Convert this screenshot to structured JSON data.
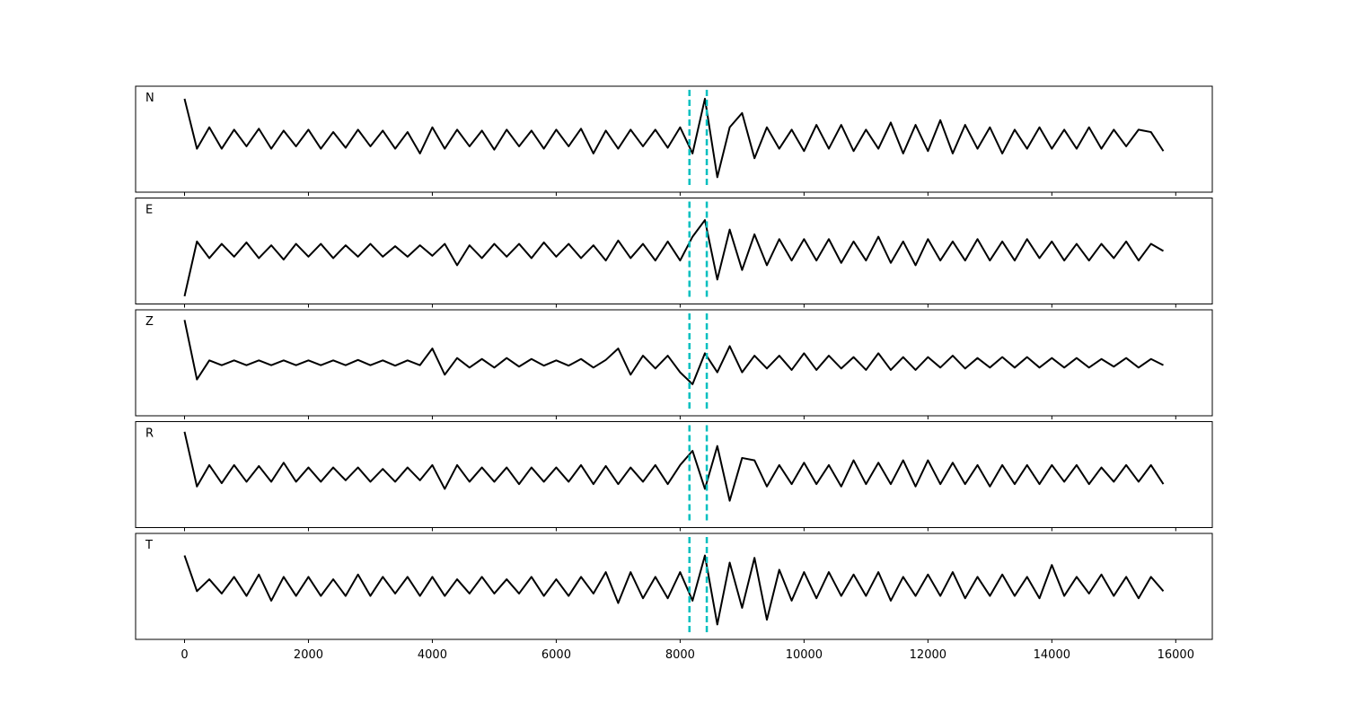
{
  "chart_data": {
    "type": "line",
    "layout": "stacked",
    "x": [
      0,
      200,
      400,
      600,
      800,
      1000,
      1200,
      1400,
      1600,
      1800,
      2000,
      2200,
      2400,
      2600,
      2800,
      3000,
      3200,
      3400,
      3600,
      3800,
      4000,
      4200,
      4400,
      4600,
      4800,
      5000,
      5200,
      5400,
      5600,
      5800,
      6000,
      6200,
      6400,
      6600,
      6800,
      7000,
      7200,
      7400,
      7600,
      7800,
      8000,
      8200,
      8400,
      8600,
      8800,
      9000,
      9200,
      9400,
      9600,
      9800,
      10000,
      10200,
      10400,
      10600,
      10800,
      11000,
      11200,
      11400,
      11600,
      11800,
      12000,
      12200,
      12400,
      12600,
      12800,
      13000,
      13200,
      13400,
      13600,
      13800,
      14000,
      14200,
      14400,
      14600,
      14800,
      15000,
      15200,
      15400,
      15600,
      15800
    ],
    "color": "#000000",
    "series": [
      {
        "name": "N",
        "values": [
          0.85,
          -0.2,
          0.25,
          -0.2,
          0.2,
          -0.15,
          0.22,
          -0.2,
          0.18,
          -0.15,
          0.2,
          -0.2,
          0.15,
          -0.18,
          0.2,
          -0.15,
          0.18,
          -0.2,
          0.15,
          -0.3,
          0.25,
          -0.2,
          0.2,
          -0.15,
          0.18,
          -0.22,
          0.2,
          -0.15,
          0.18,
          -0.2,
          0.2,
          -0.15,
          0.22,
          -0.3,
          0.18,
          -0.2,
          0.2,
          -0.15,
          0.2,
          -0.18,
          0.25,
          -0.3,
          0.85,
          -0.8,
          0.25,
          0.55,
          -0.4,
          0.25,
          -0.2,
          0.2,
          -0.25,
          0.3,
          -0.2,
          0.3,
          -0.25,
          0.2,
          -0.2,
          0.35,
          -0.3,
          0.3,
          -0.25,
          0.4,
          -0.3,
          0.3,
          -0.2,
          0.25,
          -0.3,
          0.2,
          -0.2,
          0.25,
          -0.2,
          0.2,
          -0.2,
          0.25,
          -0.2,
          0.2,
          -0.15,
          0.2,
          0.15,
          -0.25
        ]
      },
      {
        "name": "E",
        "values": [
          -0.95,
          0.2,
          -0.15,
          0.15,
          -0.12,
          0.18,
          -0.15,
          0.12,
          -0.18,
          0.15,
          -0.12,
          0.15,
          -0.15,
          0.12,
          -0.12,
          0.15,
          -0.12,
          0.1,
          -0.12,
          0.12,
          -0.1,
          0.15,
          -0.3,
          0.12,
          -0.15,
          0.15,
          -0.12,
          0.15,
          -0.15,
          0.18,
          -0.12,
          0.15,
          -0.15,
          0.12,
          -0.2,
          0.22,
          -0.15,
          0.15,
          -0.2,
          0.2,
          -0.2,
          0.3,
          0.65,
          -0.6,
          0.45,
          -0.4,
          0.35,
          -0.3,
          0.25,
          -0.2,
          0.25,
          -0.2,
          0.25,
          -0.25,
          0.2,
          -0.2,
          0.3,
          -0.25,
          0.2,
          -0.3,
          0.25,
          -0.2,
          0.2,
          -0.2,
          0.25,
          -0.2,
          0.2,
          -0.2,
          0.25,
          -0.15,
          0.2,
          -0.2,
          0.15,
          -0.2,
          0.15,
          -0.15,
          0.2,
          -0.2,
          0.15,
          0.0
        ]
      },
      {
        "name": "Z",
        "values": [
          0.9,
          -0.35,
          0.05,
          -0.05,
          0.05,
          -0.05,
          0.05,
          -0.05,
          0.05,
          -0.05,
          0.05,
          -0.05,
          0.05,
          -0.05,
          0.06,
          -0.05,
          0.05,
          -0.06,
          0.05,
          -0.05,
          0.3,
          -0.25,
          0.1,
          -0.1,
          0.08,
          -0.1,
          0.1,
          -0.08,
          0.08,
          -0.06,
          0.05,
          -0.06,
          0.08,
          -0.1,
          0.06,
          0.3,
          -0.25,
          0.15,
          -0.12,
          0.15,
          -0.2,
          -0.45,
          0.2,
          -0.2,
          0.35,
          -0.2,
          0.15,
          -0.12,
          0.15,
          -0.15,
          0.2,
          -0.15,
          0.15,
          -0.12,
          0.12,
          -0.15,
          0.2,
          -0.15,
          0.12,
          -0.15,
          0.12,
          -0.1,
          0.15,
          -0.12,
          0.1,
          -0.1,
          0.12,
          -0.1,
          0.12,
          -0.1,
          0.1,
          -0.1,
          0.1,
          -0.1,
          0.08,
          -0.08,
          0.1,
          -0.1,
          0.08,
          -0.05
        ]
      },
      {
        "name": "R",
        "values": [
          0.9,
          -0.25,
          0.2,
          -0.18,
          0.2,
          -0.15,
          0.18,
          -0.15,
          0.25,
          -0.15,
          0.15,
          -0.15,
          0.15,
          -0.12,
          0.15,
          -0.15,
          0.12,
          -0.15,
          0.15,
          -0.12,
          0.2,
          -0.3,
          0.2,
          -0.15,
          0.15,
          -0.15,
          0.15,
          -0.2,
          0.15,
          -0.15,
          0.15,
          -0.15,
          0.2,
          -0.2,
          0.18,
          -0.2,
          0.15,
          -0.15,
          0.2,
          -0.2,
          0.2,
          0.5,
          -0.3,
          0.6,
          -0.55,
          0.35,
          0.3,
          -0.25,
          0.2,
          -0.2,
          0.25,
          -0.2,
          0.2,
          -0.25,
          0.3,
          -0.2,
          0.25,
          -0.2,
          0.3,
          -0.25,
          0.3,
          -0.2,
          0.25,
          -0.2,
          0.2,
          -0.25,
          0.2,
          -0.2,
          0.2,
          -0.2,
          0.2,
          -0.15,
          0.2,
          -0.2,
          0.15,
          -0.15,
          0.2,
          -0.15,
          0.2,
          -0.2
        ]
      },
      {
        "name": "T",
        "values": [
          0.65,
          -0.1,
          0.15,
          -0.15,
          0.2,
          -0.2,
          0.25,
          -0.3,
          0.2,
          -0.2,
          0.2,
          -0.2,
          0.15,
          -0.2,
          0.25,
          -0.2,
          0.2,
          -0.15,
          0.2,
          -0.2,
          0.2,
          -0.2,
          0.15,
          -0.15,
          0.2,
          -0.15,
          0.15,
          -0.15,
          0.2,
          -0.2,
          0.15,
          -0.2,
          0.2,
          -0.15,
          0.3,
          -0.35,
          0.3,
          -0.25,
          0.2,
          -0.25,
          0.3,
          -0.3,
          0.65,
          -0.8,
          0.5,
          -0.45,
          0.6,
          -0.7,
          0.35,
          -0.3,
          0.3,
          -0.25,
          0.3,
          -0.2,
          0.25,
          -0.2,
          0.3,
          -0.3,
          0.2,
          -0.2,
          0.25,
          -0.2,
          0.3,
          -0.25,
          0.2,
          -0.2,
          0.25,
          -0.2,
          0.2,
          -0.25,
          0.45,
          -0.2,
          0.2,
          -0.15,
          0.25,
          -0.2,
          0.2,
          -0.25,
          0.2,
          -0.1
        ]
      }
    ],
    "ylim": [
      -1,
      1
    ],
    "xlim": [
      -790,
      16590
    ],
    "xticks": [
      0,
      2000,
      4000,
      6000,
      8000,
      10000,
      12000,
      14000,
      16000
    ],
    "markers": {
      "values": [
        8150,
        8430
      ],
      "color": "#00bfbf",
      "style": "dashed"
    }
  }
}
